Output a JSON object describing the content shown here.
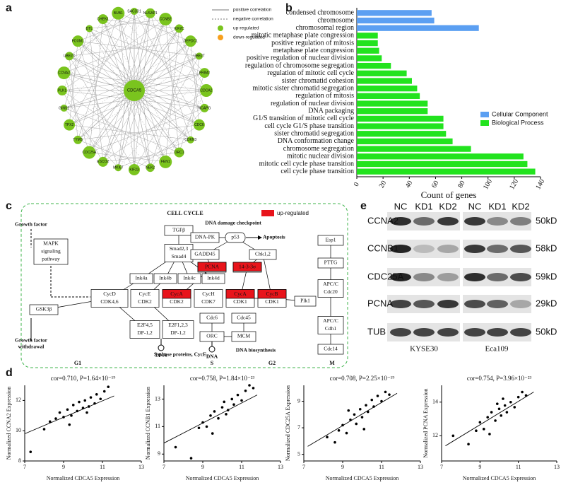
{
  "panel_labels": [
    "a",
    "b",
    "c",
    "d",
    "e"
  ],
  "network": {
    "center": "CDCA5",
    "nodes": [
      "SAC3D1",
      "NUSAP1",
      "CCNB2",
      "KIF2C",
      "DEPDC1",
      "UBE2T",
      "PRIM2",
      "CDCA2",
      "NCAPG",
      "CDC6",
      "CDKN3",
      "ORC1",
      "FEN1",
      "NEK2",
      "KIF23",
      "MKI67",
      "ESCO2",
      "CDC25A",
      "TYMS",
      "TPX2",
      "GINS1",
      "PLK1",
      "CCNA2",
      "UBE2C",
      "FOXM1",
      "DTL",
      "CHEK1",
      "BUB1"
    ],
    "legend": [
      "positive correlation",
      "negative correlation",
      "up-regulated",
      "down-regulated"
    ]
  },
  "chart_data": [
    {
      "type": "bar",
      "orientation": "horizontal",
      "categories": [
        "condensed chromosome",
        "chromosome",
        "chromosomal region",
        "mitotic metaphase plate congression",
        "positive regulation of mitosis",
        "metaphase plate congression",
        "positive regulation of nuclear division",
        "regulation of chromosome segregation",
        "regulation of mitotic cell cycle",
        "sister chromatid cohesion",
        "mitotic sister chromatid segregation",
        "regulation of mitosis",
        "regulation of nuclear division",
        "DNA packaging",
        "G1/S transition of mitotic cell cycle",
        "cell cycle G1/S phase transition",
        "sister chromatid segregation",
        "DNA conformation change",
        "chromosome segregation",
        "mitotic nuclear division",
        "mitotic cell cycle phase transition",
        "cell cycle phase transition"
      ],
      "series": [
        {
          "name": "Cellular Component",
          "color": "#5b9ff2",
          "values": [
            57,
            59,
            93,
            null,
            null,
            null,
            null,
            null,
            null,
            null,
            null,
            null,
            null,
            null,
            null,
            null,
            null,
            null,
            null,
            null,
            null,
            null
          ]
        },
        {
          "name": "Biological Process",
          "color": "#22e31e",
          "values": [
            null,
            null,
            null,
            16,
            16,
            17,
            19,
            26,
            38,
            42,
            46,
            48,
            54,
            54,
            66,
            66,
            68,
            73,
            87,
            127,
            130,
            136
          ]
        }
      ],
      "xlabel": "Count of genes",
      "xlim": [
        0,
        140
      ],
      "xticks": [
        0,
        20,
        40,
        60,
        80,
        100,
        120,
        140
      ],
      "legend": "lower right"
    },
    {
      "type": "scatter",
      "title": "cor=0.710, P=1.64×10⁻¹⁹",
      "xlabel": "Normalized CDCA5 Expression",
      "ylabel": "Normalized CCNA2 Expression",
      "color": "#000000",
      "x": [
        7.3,
        8.0,
        8.3,
        8.6,
        8.8,
        9.0,
        9.2,
        9.4,
        9.5,
        9.7,
        9.8,
        10.0,
        10.1,
        10.3,
        10.4,
        10.6,
        10.7,
        10.9,
        11.1,
        11.3,
        9.3,
        10.2
      ],
      "values": [
        8.6,
        10.1,
        10.6,
        10.8,
        11.2,
        10.9,
        11.4,
        11.0,
        11.7,
        11.3,
        11.9,
        11.5,
        12.0,
        11.6,
        12.2,
        11.8,
        12.4,
        12.1,
        12.6,
        12.9,
        10.4,
        11.2
      ],
      "trend_line": {
        "x": [
          7,
          11.6
        ],
        "y": [
          9.8,
          12.3
        ]
      },
      "xlim": [
        7,
        13
      ],
      "xticks": [
        7,
        9,
        11,
        13
      ],
      "ylim": [
        8,
        13
      ],
      "yticks": [
        8,
        10,
        12
      ]
    },
    {
      "type": "scatter",
      "title": "cor=0.758, P=1.84×10⁻²³",
      "xlabel": "Normalized CDCA5 Expression",
      "ylabel": "Normalized CCNB1 Expression",
      "color": "#000000",
      "x": [
        7.6,
        8.4,
        8.8,
        9.0,
        9.2,
        9.4,
        9.6,
        9.8,
        10.0,
        10.1,
        10.3,
        10.5,
        10.6,
        10.8,
        11.0,
        11.2,
        11.4,
        11.6,
        9.5,
        10.2
      ],
      "values": [
        9.5,
        8.7,
        10.9,
        11.3,
        11.0,
        11.8,
        12.1,
        11.6,
        12.4,
        12.8,
        12.2,
        13.0,
        12.6,
        13.3,
        12.9,
        13.6,
        14.0,
        13.8,
        10.5,
        11.9
      ],
      "trend_line": {
        "x": [
          7,
          11.8
        ],
        "y": [
          9.8,
          13.3
        ]
      },
      "xlim": [
        7,
        13
      ],
      "xticks": [
        7,
        9,
        11,
        13
      ],
      "ylim": [
        8.5,
        14
      ],
      "yticks": [
        9,
        11,
        13
      ]
    },
    {
      "type": "scatter",
      "title": "cor=0.708, P=2.25×10⁻¹⁹",
      "xlabel": "Normalized CDCA5 Expression",
      "ylabel": "Normalized CDC25A Expression",
      "color": "#000000",
      "x": [
        8.2,
        8.6,
        8.8,
        9.0,
        9.2,
        9.4,
        9.6,
        9.7,
        9.9,
        10.0,
        10.2,
        10.3,
        10.5,
        10.6,
        10.8,
        11.0,
        11.2,
        11.4,
        9.3,
        10.1
      ],
      "values": [
        6.3,
        5.9,
        6.8,
        7.2,
        6.6,
        7.6,
        8.0,
        7.3,
        8.4,
        7.8,
        8.7,
        8.2,
        9.1,
        8.6,
        9.4,
        9.0,
        9.7,
        9.5,
        8.3,
        6.9
      ],
      "trend_line": {
        "x": [
          7.2,
          11.8
        ],
        "y": [
          5.6,
          9.6
        ]
      },
      "xlim": [
        7,
        13
      ],
      "xticks": [
        7,
        9,
        11,
        13
      ],
      "ylim": [
        4.5,
        10.2
      ],
      "yticks": [
        5,
        7,
        9
      ]
    },
    {
      "type": "scatter",
      "title": "cor=0.754, P=3.96×10⁻²³",
      "xlabel": "Normalized CDCA5 Expression",
      "ylabel": "Normalized PCNA Expression",
      "color": "#000000",
      "x": [
        7.6,
        8.4,
        8.8,
        9.0,
        9.2,
        9.4,
        9.6,
        9.8,
        10.0,
        10.1,
        10.3,
        10.4,
        10.6,
        10.8,
        11.0,
        11.2,
        11.4,
        9.5,
        10.2,
        9.9
      ],
      "values": [
        12.0,
        11.5,
        12.3,
        12.8,
        12.4,
        13.1,
        13.4,
        12.9,
        13.6,
        13.2,
        13.8,
        13.4,
        14.0,
        13.7,
        14.3,
        14.6,
        14.4,
        12.1,
        14.2,
        13.9
      ],
      "trend_line": {
        "x": [
          7.2,
          11.8
        ],
        "y": [
          11.4,
          14.6
        ]
      },
      "xlim": [
        7,
        13
      ],
      "xticks": [
        7,
        9,
        11,
        13
      ],
      "ylim": [
        10.5,
        15
      ],
      "yticks": [
        12,
        14
      ]
    }
  ],
  "pathway": {
    "title": "CELL CYCLE",
    "legend": "up-regulated",
    "nodes": [
      {
        "lines": [
          "TGFβ"
        ]
      },
      {
        "lines": [
          "Smad2,3",
          "Smad4"
        ]
      },
      {
        "lines": [
          "Ink4a"
        ]
      },
      {
        "lines": [
          "Ink4b"
        ]
      },
      {
        "lines": [
          "Ink4c"
        ]
      },
      {
        "lines": [
          "Ink4d"
        ]
      },
      {
        "lines": [
          "DNA-PK"
        ]
      },
      {
        "lines": [
          "p53"
        ]
      },
      {
        "lines": [
          "GADD45"
        ]
      },
      {
        "lines": [
          "Chk1,2"
        ]
      },
      {
        "lines": [
          "PCNA"
        ],
        "up": true
      },
      {
        "lines": [
          "14-3-3σ"
        ],
        "up": true
      },
      {
        "lines": [
          "CycD",
          "CDK4,6"
        ]
      },
      {
        "lines": [
          "CycE",
          "CDK2"
        ]
      },
      {
        "lines": [
          "CycA",
          "CDK2"
        ],
        "up": true
      },
      {
        "lines": [
          "CycH",
          "CDK7"
        ]
      },
      {
        "lines": [
          "CycA",
          "CDK1"
        ],
        "up": true
      },
      {
        "lines": [
          "CycB",
          "CDK1"
        ],
        "up": true
      },
      {
        "lines": [
          "Plk1"
        ]
      },
      {
        "lines": [
          "Esp1"
        ]
      },
      {
        "lines": [
          "PTTG"
        ]
      },
      {
        "lines": [
          "APC/C",
          "Cdc20"
        ]
      },
      {
        "lines": [
          "APC/C",
          "Cdh1"
        ]
      },
      {
        "lines": [
          "Cdc14"
        ]
      },
      {
        "lines": [
          "MAPK",
          "signaling",
          "pathway"
        ]
      },
      {
        "lines": [
          "GSK3β"
        ]
      },
      {
        "lines": [
          "E2F4,5",
          "DP-1,2"
        ]
      },
      {
        "lines": [
          "E2F1,2,3",
          "DP-1,2"
        ]
      },
      {
        "lines": [
          "Cdc6"
        ]
      },
      {
        "lines": [
          "Cdc45"
        ]
      },
      {
        "lines": [
          "ORC"
        ]
      },
      {
        "lines": [
          "MCM"
        ]
      }
    ],
    "labels": [
      "Growth factor",
      "Growth factor",
      "withdrawal",
      "DNA damage checkpoint",
      "Apoptosis",
      "S-phase proteins, CycE",
      "DNA",
      "DNA",
      "DNA biosynthesis"
    ],
    "phases": [
      "G1",
      "S",
      "G2",
      "M"
    ]
  },
  "western_blot": {
    "lanes": [
      "NC",
      "KD1",
      "KD2",
      "NC",
      "KD1",
      "KD2"
    ],
    "proteins": [
      "CCNA2",
      "CCNB1",
      "CDC25A",
      "PCNA",
      "TUB"
    ],
    "sizes": [
      "50kD",
      "58kD",
      "59kD",
      "29kD",
      "50kD"
    ],
    "cell_lines": [
      "KYSE30",
      "Eca109"
    ]
  }
}
